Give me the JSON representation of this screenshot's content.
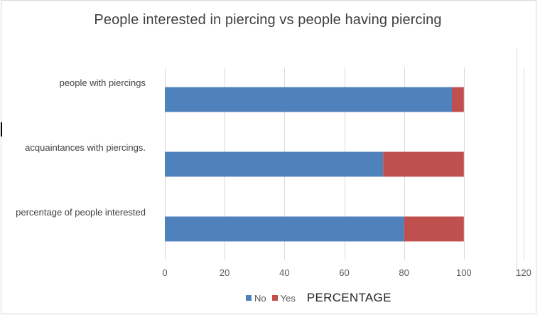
{
  "chart_data": {
    "type": "bar",
    "orientation": "horizontal",
    "stacked": true,
    "title": "People interested  in piercing vs people having piercing",
    "xlabel": "PERCENTAGE",
    "ylabel": "",
    "categories": [
      "people with piercings",
      "acquaintances with piercings.",
      "percentage of people interested"
    ],
    "series": [
      {
        "name": "No",
        "color": "#4f81bd",
        "values": [
          96,
          73,
          80
        ]
      },
      {
        "name": "Yes",
        "color": "#c0504d",
        "values": [
          4,
          27,
          20
        ]
      }
    ],
    "xlim": [
      0,
      120
    ],
    "xticks": [
      "0",
      "20",
      "40",
      "60",
      "80",
      "100",
      "120"
    ],
    "grid": "vertical",
    "legend_position": "bottom"
  }
}
